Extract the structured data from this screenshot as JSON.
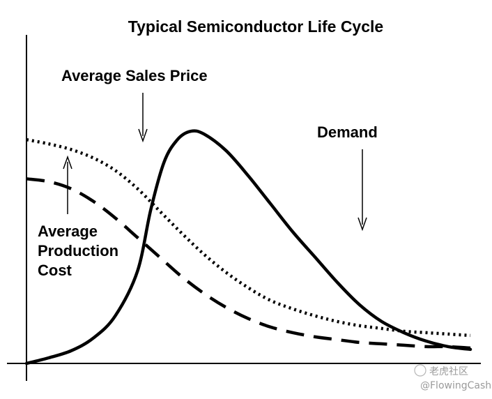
{
  "chart_data": {
    "type": "line",
    "title": "Typical Semiconductor Life Cycle",
    "xlabel": "",
    "ylabel": "",
    "xlim": [
      0,
      100
    ],
    "ylim": [
      0,
      100
    ],
    "grid": false,
    "series": [
      {
        "name": "Average Sales Price",
        "style": "dotted",
        "x": [
          0,
          5,
          10,
          15,
          20,
          25,
          30,
          35,
          40,
          45,
          50,
          55,
          60,
          65,
          70,
          75,
          80,
          85,
          90,
          95,
          100
        ],
        "y": [
          80,
          78.5,
          76.5,
          73.5,
          69,
          62.5,
          54.5,
          46.5,
          39,
          32.5,
          27,
          22.5,
          19.5,
          17,
          15,
          13.5,
          12.5,
          11.5,
          11,
          10.5,
          10
        ]
      },
      {
        "name": "Average Production Cost",
        "style": "dashed",
        "x": [
          0,
          5,
          10,
          15,
          20,
          25,
          30,
          35,
          40,
          45,
          50,
          55,
          60,
          65,
          70,
          75,
          80,
          85,
          90,
          95,
          100
        ],
        "y": [
          66,
          65,
          62.5,
          58,
          52,
          45,
          38,
          31,
          25,
          20,
          16,
          13,
          11,
          9.5,
          8.5,
          7.5,
          7,
          6.5,
          6,
          6,
          5.5
        ]
      },
      {
        "name": "Demand",
        "style": "solid",
        "x": [
          0,
          5,
          10,
          15,
          20,
          25,
          28,
          31,
          34,
          37,
          40,
          45,
          50,
          55,
          60,
          65,
          70,
          75,
          80,
          85,
          90,
          95,
          100
        ],
        "y": [
          0,
          2,
          4.5,
          9,
          17,
          33,
          55,
          72,
          80,
          83,
          82,
          76,
          67,
          57,
          47,
          38,
          29,
          21,
          15,
          11,
          8,
          6,
          5
        ]
      }
    ],
    "annotations": [
      {
        "text": "Average Sales Price",
        "points_to": "Average Sales Price"
      },
      {
        "text": "Average Production Cost",
        "lines": [
          "Average",
          "Production",
          "Cost"
        ],
        "points_to": "Average Production Cost"
      },
      {
        "text": "Demand",
        "points_to": "Demand"
      }
    ]
  },
  "watermark": {
    "brand": "老虎社区",
    "handle": "@FlowingCash"
  }
}
